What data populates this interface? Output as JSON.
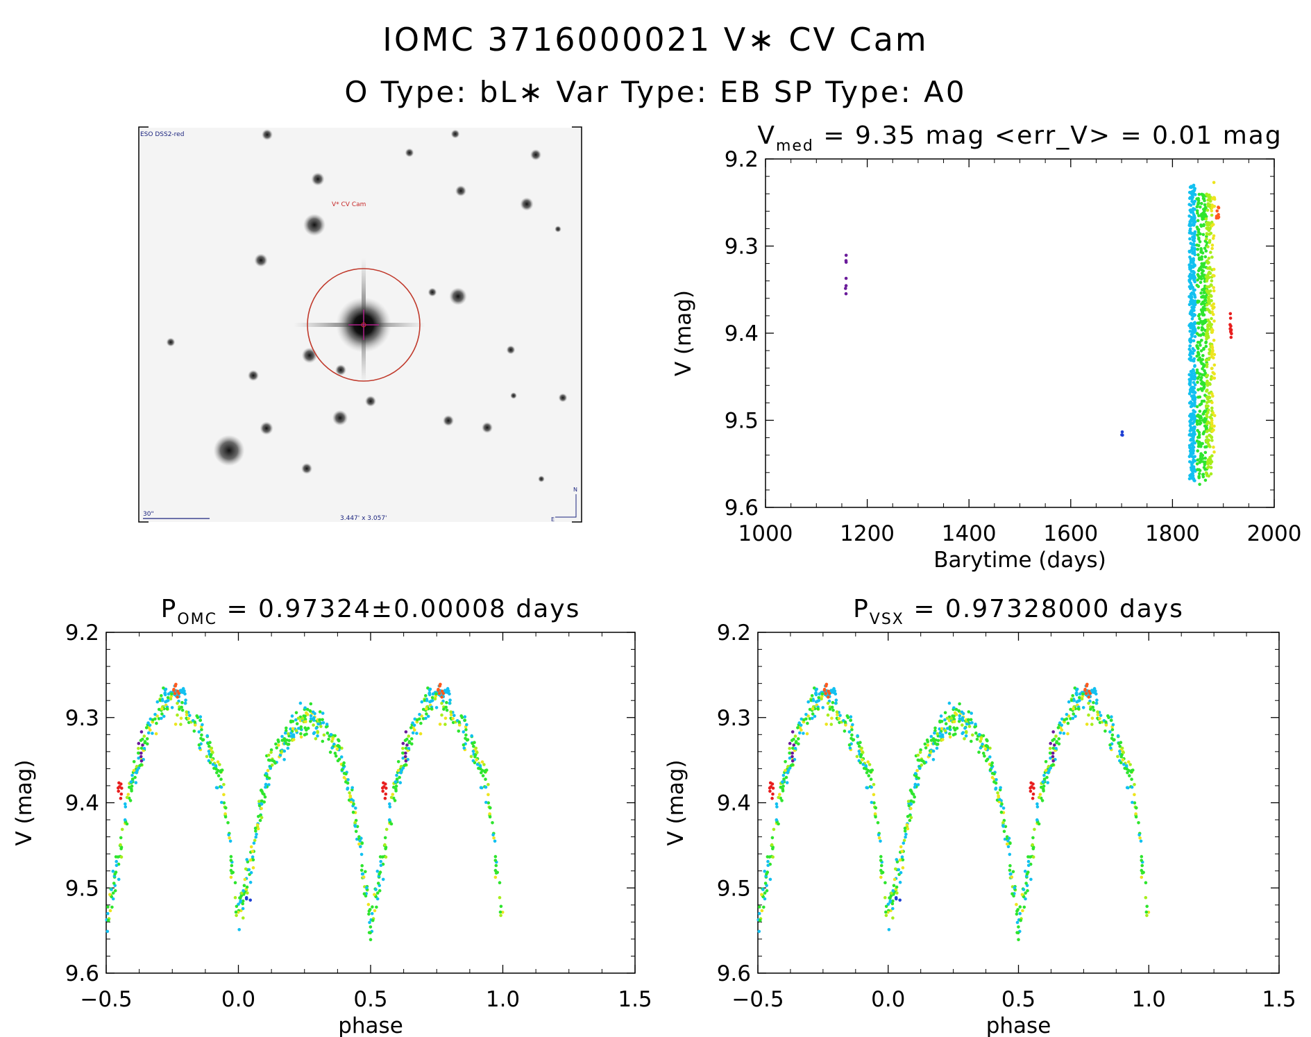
{
  "header": {
    "title": "IOMC 3716000021    V∗ CV Cam",
    "subtitle": "O Type: bL∗  Var Type: EB  SP Type: A0"
  },
  "image_panel": {
    "label_survey": "ESO DSS2-red",
    "label_target": "V* CV Cam",
    "label_scale": "30\"",
    "label_fov": "3.447' x 3.057'",
    "label_north": "N",
    "label_east": "E"
  },
  "colors": {
    "season_purple": "#6a1b9a",
    "season_blue": "#1e3fd4",
    "season_cyan": "#12c0f0",
    "season_green": "#2ee52e",
    "season_lime": "#a7ee1c",
    "season_yellow": "#ede51f",
    "season_orange": "#ff5a1e",
    "season_red": "#e81e1e"
  },
  "chart_data": [
    {
      "type": "scatter",
      "id": "lightcurve",
      "title_main": "V",
      "title_sub": "med",
      "title_rest": " = 9.35 mag <err_V> = 0.01 mag",
      "xlabel": "Barytime (days)",
      "ylabel": "V (mag)",
      "xlim": [
        1000,
        2000
      ],
      "ylim": [
        9.2,
        9.6
      ],
      "y_inverted": true,
      "xticks": [
        "1000",
        "1200",
        "1400",
        "1600",
        "1800",
        "2000"
      ],
      "xtick_values": [
        1000,
        1200,
        1400,
        1600,
        1800,
        2000
      ],
      "yticks": [
        "9.2",
        "9.3",
        "9.4",
        "9.5",
        "9.6"
      ],
      "ytick_values": [
        9.2,
        9.3,
        9.4,
        9.5,
        9.6
      ],
      "groups": [
        {
          "name": "season_purple",
          "x_range": [
            1157,
            1159
          ],
          "v_range": [
            9.3,
            9.355
          ],
          "points": 7
        },
        {
          "name": "season_blue",
          "x_range": [
            1700,
            1702
          ],
          "v_range": [
            9.512,
            9.518
          ],
          "points": 3
        },
        {
          "name": "season_cyan",
          "x_range": [
            1833,
            1845
          ],
          "v_range": [
            9.23,
            9.57
          ],
          "points": 420
        },
        {
          "name": "season_green",
          "x_range": [
            1848,
            1868
          ],
          "v_range": [
            9.24,
            9.575
          ],
          "points": 330
        },
        {
          "name": "season_lime",
          "x_range": [
            1866,
            1878
          ],
          "v_range": [
            9.24,
            9.565
          ],
          "points": 200
        },
        {
          "name": "season_yellow",
          "x_range": [
            1877,
            1883
          ],
          "v_range": [
            9.215,
            9.55
          ],
          "points": 60
        },
        {
          "name": "season_orange",
          "x_range": [
            1886,
            1891
          ],
          "v_range": [
            9.255,
            9.27
          ],
          "points": 8
        },
        {
          "name": "season_red",
          "x_range": [
            1913,
            1917
          ],
          "v_range": [
            9.375,
            9.405
          ],
          "points": 10
        }
      ]
    },
    {
      "type": "scatter",
      "id": "phase_omc",
      "title_main": "P",
      "title_sub": "OMC",
      "title_rest": " = 0.97324±0.00008 days",
      "xlabel": "phase",
      "ylabel": "V (mag)",
      "xlim": [
        -0.5,
        1.5
      ],
      "ylim": [
        9.2,
        9.6
      ],
      "y_inverted": true,
      "xticks": [
        "−0.5",
        "0.0",
        "0.5",
        "1.0",
        "1.5"
      ],
      "xtick_values": [
        -0.5,
        0.0,
        0.5,
        1.0,
        1.5
      ],
      "yticks": [
        "9.2",
        "9.3",
        "9.4",
        "9.5",
        "9.6"
      ],
      "ytick_values": [
        9.2,
        9.3,
        9.4,
        9.5,
        9.6
      ],
      "period_days": 0.97324,
      "curve_phase": [
        0.0,
        0.04,
        0.08,
        0.12,
        0.18,
        0.25,
        0.32,
        0.38,
        0.43,
        0.47,
        0.5,
        0.54,
        0.58,
        0.62,
        0.68,
        0.75,
        0.82,
        0.88,
        0.94,
        0.97,
        1.0
      ],
      "curve_v": [
        9.53,
        9.48,
        9.41,
        9.35,
        9.33,
        9.3,
        9.31,
        9.34,
        9.4,
        9.47,
        9.54,
        9.48,
        9.4,
        9.35,
        9.3,
        9.28,
        9.3,
        9.33,
        9.38,
        9.46,
        9.53
      ]
    },
    {
      "type": "scatter",
      "id": "phase_vsx",
      "title_main": "P",
      "title_sub": "VSX",
      "title_rest": " = 0.97328000 days",
      "xlabel": "phase",
      "ylabel": "V (mag)",
      "xlim": [
        -0.5,
        1.5
      ],
      "ylim": [
        9.2,
        9.6
      ],
      "y_inverted": true,
      "xticks": [
        "−0.5",
        "0.0",
        "0.5",
        "1.0",
        "1.5"
      ],
      "xtick_values": [
        -0.5,
        0.0,
        0.5,
        1.0,
        1.5
      ],
      "yticks": [
        "9.2",
        "9.3",
        "9.4",
        "9.5",
        "9.6"
      ],
      "ytick_values": [
        9.2,
        9.3,
        9.4,
        9.5,
        9.6
      ],
      "period_days": 0.97328,
      "curve_phase": [
        0.0,
        0.04,
        0.08,
        0.12,
        0.18,
        0.25,
        0.32,
        0.38,
        0.43,
        0.47,
        0.5,
        0.54,
        0.58,
        0.62,
        0.68,
        0.75,
        0.82,
        0.88,
        0.94,
        0.97,
        1.0
      ],
      "curve_v": [
        9.53,
        9.48,
        9.41,
        9.35,
        9.33,
        9.3,
        9.31,
        9.34,
        9.4,
        9.47,
        9.54,
        9.48,
        9.4,
        9.35,
        9.3,
        9.28,
        9.3,
        9.33,
        9.38,
        9.46,
        9.53
      ]
    }
  ]
}
